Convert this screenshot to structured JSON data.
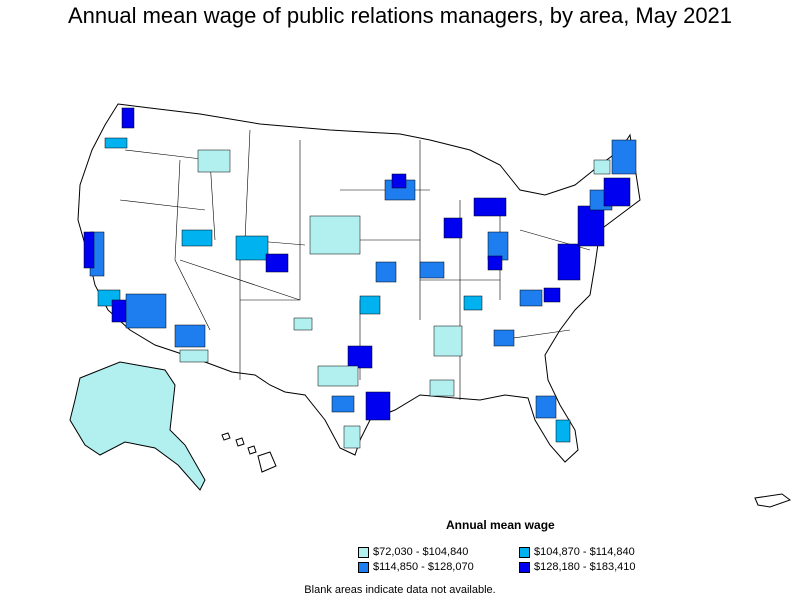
{
  "title": "Annual mean wage of public relations managers, by area, May 2021",
  "legend": {
    "title": "Annual mean wage",
    "items": [
      {
        "label": "$72,030 - $104,840",
        "color": "#b2f0f0"
      },
      {
        "label": "$104,870 - $114,840",
        "color": "#00b2f0"
      },
      {
        "label": "$114,850 - $128,070",
        "color": "#1e7ef0"
      },
      {
        "label": "$128,180 - $183,410",
        "color": "#0000f0"
      }
    ]
  },
  "note": "Blank areas indicate data not available.",
  "colors": {
    "no_data": "#ffffff",
    "border": "#000000"
  }
}
